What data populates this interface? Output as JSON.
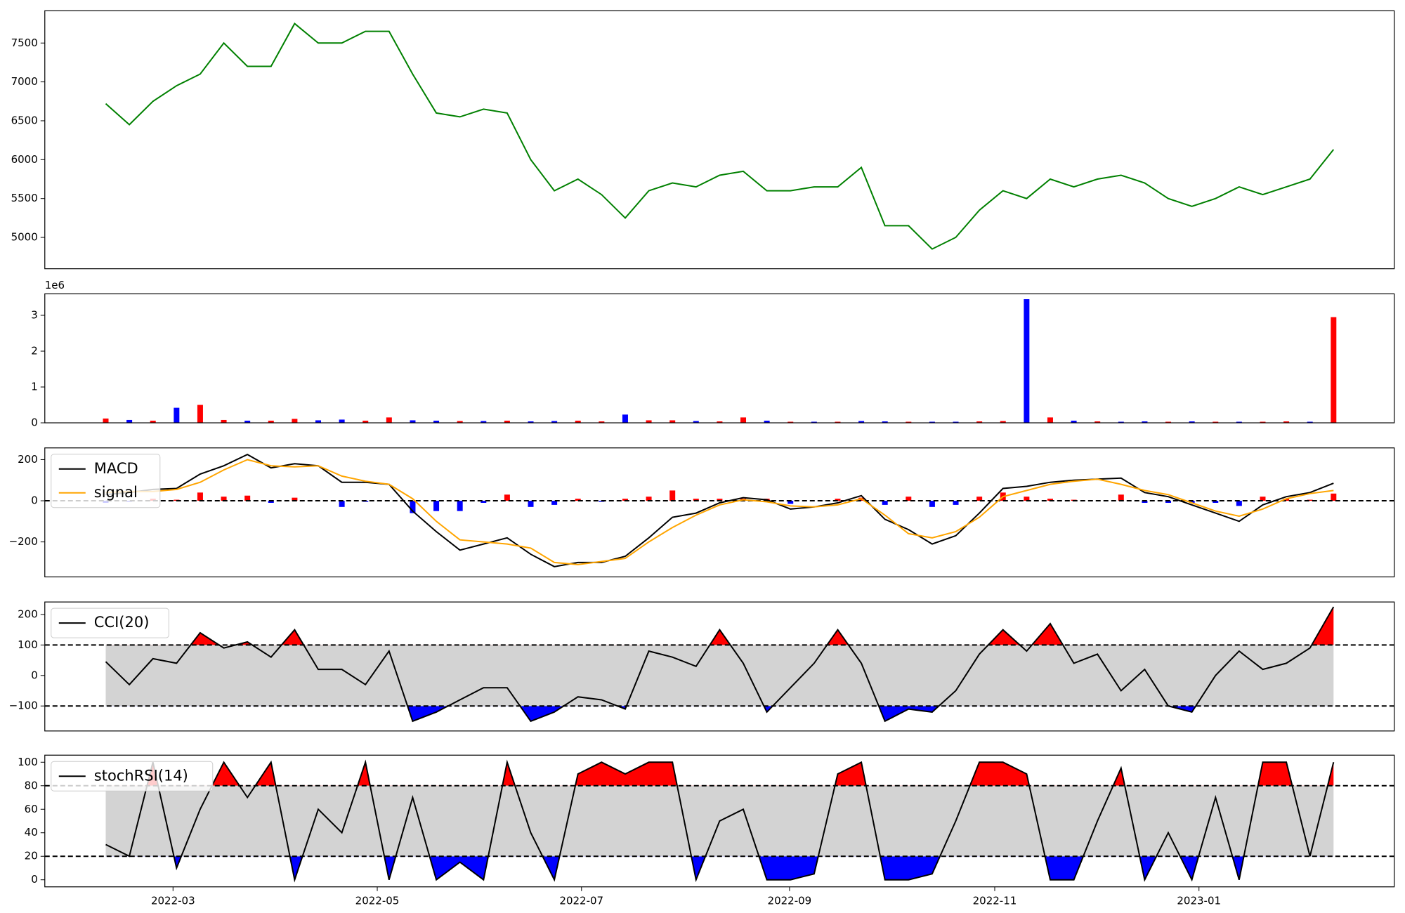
{
  "chart_data": [
    {
      "type": "line",
      "color": "green",
      "values": [
        6720,
        6450,
        6750,
        6950,
        7100,
        7500,
        7200,
        7200,
        7750,
        7500,
        7500,
        7650,
        7650,
        7100,
        6600,
        6550,
        6650,
        6600,
        6000,
        5600,
        5750,
        5550,
        5250,
        5600,
        5700,
        5650,
        5800,
        5850,
        5600,
        5600,
        5650,
        5650,
        5900,
        5150,
        5150,
        4850,
        5000,
        5350,
        5600,
        5500,
        5750,
        5650,
        5750,
        5800,
        5700,
        5500,
        5400,
        5500,
        5650,
        5550,
        5650,
        5750,
        6130
      ],
      "ylim": [
        4597,
        7915
      ],
      "yticks": [
        5000,
        5500,
        6000,
        6500,
        7000,
        7500
      ]
    },
    {
      "type": "bar",
      "offset_label": "1e6",
      "values": [
        120000,
        80000,
        60000,
        420000,
        500000,
        80000,
        60000,
        60000,
        110000,
        70000,
        90000,
        60000,
        150000,
        70000,
        60000,
        50000,
        50000,
        60000,
        40000,
        50000,
        60000,
        40000,
        230000,
        70000,
        70000,
        50000,
        40000,
        150000,
        60000,
        30000,
        30000,
        30000,
        50000,
        40000,
        30000,
        30000,
        30000,
        40000,
        50000,
        3450000,
        150000,
        60000,
        40000,
        30000,
        40000,
        30000,
        40000,
        30000,
        30000,
        30000,
        40000,
        30000,
        2950000
      ],
      "colors": [
        "red",
        "blue",
        "red",
        "blue",
        "red",
        "red",
        "blue",
        "red",
        "red",
        "blue",
        "blue",
        "red",
        "red",
        "blue",
        "blue",
        "red",
        "blue",
        "red",
        "blue",
        "blue",
        "red",
        "red",
        "blue",
        "red",
        "red",
        "blue",
        "red",
        "red",
        "blue",
        "red",
        "blue",
        "red",
        "blue",
        "blue",
        "red",
        "blue",
        "blue",
        "red",
        "red",
        "blue",
        "red",
        "blue",
        "red",
        "blue",
        "blue",
        "red",
        "blue",
        "red",
        "blue",
        "red",
        "red",
        "blue",
        "red"
      ],
      "ylim": [
        0,
        3600000
      ],
      "yticks": [
        {
          "value": 0,
          "label": "0"
        },
        {
          "value": 1000000,
          "label": "1"
        },
        {
          "value": 2000000,
          "label": "2"
        },
        {
          "value": 3000000,
          "label": "3"
        }
      ]
    },
    {
      "type": "macd",
      "legend": "upper left",
      "series": [
        {
          "name": "MACD",
          "color": "black",
          "values": [
            30,
            40,
            55,
            60,
            130,
            170,
            225,
            160,
            180,
            170,
            90,
            90,
            80,
            -50,
            -150,
            -240,
            -210,
            -180,
            -260,
            -320,
            -300,
            -300,
            -270,
            -180,
            -80,
            -60,
            -10,
            15,
            5,
            -40,
            -30,
            -10,
            25,
            -90,
            -140,
            -210,
            -170,
            -60,
            60,
            70,
            90,
            100,
            105,
            110,
            40,
            20,
            -20,
            -60,
            -100,
            -20,
            20,
            40,
            85
          ]
        },
        {
          "name": "signal",
          "color": "orange",
          "values": [
            40,
            45,
            45,
            55,
            90,
            150,
            200,
            170,
            165,
            170,
            120,
            95,
            80,
            10,
            -100,
            -190,
            -200,
            -210,
            -230,
            -300,
            -310,
            -295,
            -280,
            -200,
            -130,
            -70,
            -20,
            5,
            -5,
            -25,
            -30,
            -20,
            10,
            -70,
            -160,
            -180,
            -150,
            -80,
            20,
            50,
            80,
            95,
            105,
            80,
            50,
            30,
            -10,
            -50,
            -75,
            -40,
            10,
            35,
            50
          ]
        }
      ],
      "histogram": {
        "pos_color": "red",
        "neg_color": "blue",
        "values": [
          -10,
          -5,
          10,
          5,
          40,
          20,
          25,
          -10,
          15,
          0,
          -30,
          -5,
          0,
          -60,
          -50,
          -50,
          -10,
          30,
          -30,
          -20,
          10,
          -5,
          10,
          20,
          50,
          10,
          10,
          10,
          10,
          -15,
          0,
          10,
          15,
          -20,
          20,
          -30,
          -20,
          20,
          40,
          20,
          10,
          5,
          0,
          30,
          -10,
          -10,
          -10,
          -10,
          -25,
          20,
          10,
          5,
          35
        ]
      },
      "hlines": [
        0
      ],
      "ylim": [
        -370,
        257
      ],
      "yticks": [
        {
          "value": -200,
          "label": "−200"
        },
        0,
        200
      ]
    },
    {
      "type": "oscillator",
      "legend": "upper left",
      "band_color": "lightgray",
      "over_color": "red",
      "under_color": "blue",
      "series": [
        {
          "name": "CCI(20)",
          "color": "black",
          "values": [
            45,
            -30,
            55,
            40,
            140,
            90,
            110,
            60,
            150,
            20,
            20,
            -30,
            80,
            -150,
            -120,
            -80,
            -40,
            -40,
            -150,
            -120,
            -70,
            -80,
            -110,
            80,
            60,
            30,
            150,
            40,
            -120,
            -40,
            40,
            150,
            40,
            -150,
            -110,
            -120,
            -50,
            70,
            150,
            80,
            170,
            40,
            70,
            -50,
            20,
            -100,
            -120,
            0,
            80,
            20,
            40,
            90,
            225
          ]
        }
      ],
      "hlines": [
        100,
        -100
      ],
      "ylim": [
        -182,
        241
      ],
      "yticks": [
        {
          "value": -100,
          "label": "−100"
        },
        0,
        100,
        200
      ]
    },
    {
      "type": "oscillator",
      "legend": "upper left",
      "band_color": "lightgray",
      "over_color": "red",
      "under_color": "blue",
      "series": [
        {
          "name": "stochRSI(14)",
          "color": "black",
          "values": [
            30,
            20,
            100,
            10,
            60,
            100,
            70,
            100,
            0,
            60,
            40,
            100,
            0,
            70,
            0,
            15,
            0,
            100,
            40,
            0,
            90,
            100,
            90,
            100,
            100,
            0,
            50,
            60,
            0,
            0,
            5,
            90,
            100,
            0,
            0,
            5,
            50,
            100,
            100,
            90,
            0,
            0,
            50,
            95,
            0,
            40,
            0,
            70,
            0,
            100,
            100,
            20,
            100
          ]
        }
      ],
      "hlines": [
        80,
        20
      ],
      "ylim": [
        -6,
        106
      ],
      "yticks": [
        0,
        20,
        40,
        60,
        80,
        100
      ],
      "xlim": [
        -2.58,
        54.57
      ],
      "xticks": [
        {
          "value": 2.85,
          "label": "2022-03"
        },
        {
          "value": 11.5,
          "label": "2022-05"
        },
        {
          "value": 20.15,
          "label": "2022-07"
        },
        {
          "value": 28.96,
          "label": "2022-09"
        },
        {
          "value": 37.65,
          "label": "2022-11"
        },
        {
          "value": 46.3,
          "label": "2023-01"
        }
      ]
    }
  ]
}
